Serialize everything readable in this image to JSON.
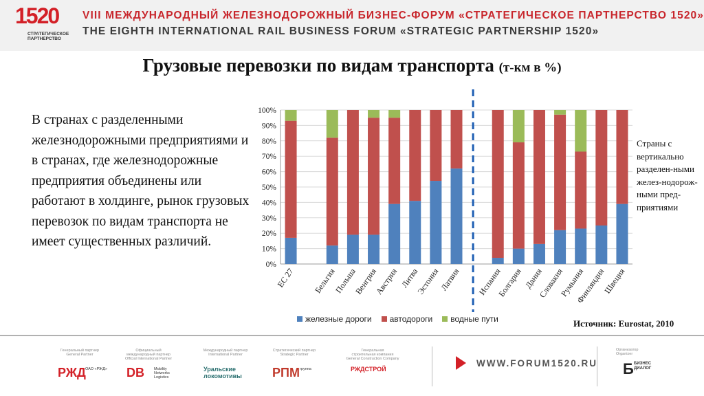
{
  "header": {
    "logo_number": "1520",
    "logo_subtitle_line1": "СТРАТЕГИЧЕСКОЕ",
    "logo_subtitle_line2": "ПАРТНЕРСТВО",
    "forum_ru": "VIII МЕЖДУНАРОДНЫЙ ЖЕЛЕЗНОДОРОЖНЫЙ БИЗНЕС-ФОРУМ «СТРАТЕГИЧЕСКОЕ ПАРТНЕРСТВО 1520»",
    "forum_en": "THE EIGHTH INTERNATIONAL RAIL BUSINESS FORUM «STRATEGIC PARTNERSHIP 1520»"
  },
  "slide": {
    "title": "Грузовые перевозки по видам транспорта",
    "title_unit": "(т-км в %)",
    "left_text": "В странах с разделенными железнодорожными предприятиями и в странах, где железнодорожные предприятия объединены или работают в холдинге, рынок грузовых перевозок по видам транспорта не имеет существенных различий.",
    "right_note": "Страны с вертикально разделен-ными желез-нодорож-ными пред-приятиями",
    "source": "Источник: Eurostat, 2010"
  },
  "chart_data": {
    "type": "bar",
    "stacked": true,
    "categories": [
      "ЕС 27",
      "",
      "Бельгия",
      "Польша",
      "Венгрия",
      "Австрия",
      "Литва",
      "Эстония",
      "Латвия",
      "",
      "Испания",
      "Болгария",
      "Дания",
      "Словакия",
      "Румыния",
      "Финляндия",
      "Швеция"
    ],
    "series": [
      {
        "name": "железные дороги",
        "color": "#4f81bd",
        "values": [
          17,
          0,
          12,
          19,
          19,
          39,
          41,
          54,
          62,
          0,
          4,
          10,
          13,
          22,
          23,
          25,
          39
        ]
      },
      {
        "name": "автодороги",
        "color": "#c0504d",
        "values": [
          76,
          0,
          70,
          81,
          76,
          56,
          59,
          46,
          38,
          0,
          96,
          69,
          87,
          75,
          50,
          75,
          61
        ]
      },
      {
        "name": "водные пути",
        "color": "#9bbb59",
        "values": [
          7,
          0,
          18,
          0,
          5,
          5,
          0,
          0,
          0,
          0,
          0,
          21,
          0,
          3,
          27,
          0,
          0
        ]
      }
    ],
    "y_ticks": [
      "0%",
      "10%",
      "20%",
      "30%",
      "40%",
      "50%",
      "60%",
      "70%",
      "80%",
      "90%",
      "100%"
    ],
    "ylim": [
      0,
      100
    ],
    "divider_after_index": 9,
    "legend_position": "bottom"
  },
  "footer": {
    "partners": [
      {
        "role": "Генеральный партнер\nGeneral Partner",
        "name": "РЖД",
        "caption": "ОАО «РЖД»"
      },
      {
        "role": "Официальный\nмеждународный партнер\nOfficial International Partner",
        "name": "DB",
        "caption": "Mobility\nNetworks\nLogistics"
      },
      {
        "role": "Международный партнер\nInternational Partner",
        "name": "Уральские\nлокомотивы",
        "caption": ""
      },
      {
        "role": "Стратегический партнер\nStrategic Partner",
        "name": "РПМ",
        "caption": "группа"
      },
      {
        "role": "Генеральная\nстроительная компания\nGeneral Construction Company",
        "name": "РЖДСТРОЙ",
        "caption": ""
      }
    ],
    "website": "WWW.FORUM1520.RU",
    "organizer_label": "Организатор\nOrganizer",
    "organizer_name": "БИЗНЕС\nДИАЛОГ"
  }
}
